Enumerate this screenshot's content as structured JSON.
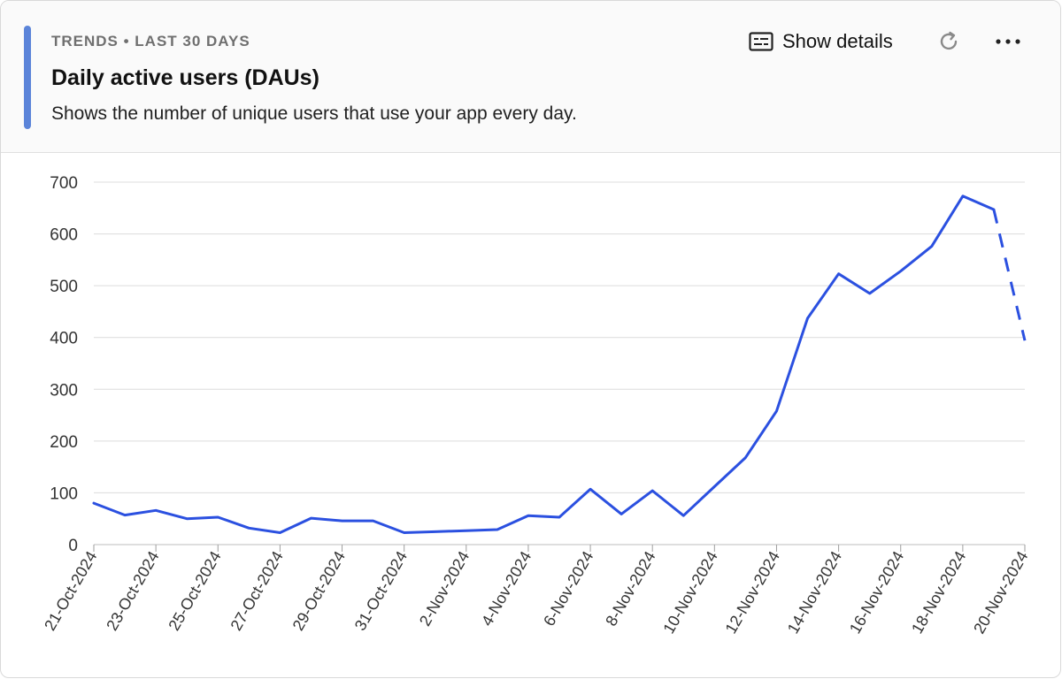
{
  "header": {
    "eyebrow": "TRENDS • LAST 30 DAYS",
    "title": "Daily active users (DAUs)",
    "subtitle": "Shows the number of unique users that use your app every day.",
    "show_details_label": "Show details",
    "accent_color": "#5b84d9"
  },
  "icons": {
    "details": "details-icon",
    "refresh": "refresh-icon",
    "more": "more-icon"
  },
  "chart_data": {
    "type": "line",
    "ylim": [
      0,
      700
    ],
    "yticks": [
      0,
      100,
      200,
      300,
      400,
      500,
      600,
      700
    ],
    "x": [
      "21-Oct-2024",
      "22-Oct-2024",
      "23-Oct-2024",
      "24-Oct-2024",
      "25-Oct-2024",
      "26-Oct-2024",
      "27-Oct-2024",
      "28-Oct-2024",
      "29-Oct-2024",
      "30-Oct-2024",
      "31-Oct-2024",
      "1-Nov-2024",
      "2-Nov-2024",
      "3-Nov-2024",
      "4-Nov-2024",
      "5-Nov-2024",
      "6-Nov-2024",
      "7-Nov-2024",
      "8-Nov-2024",
      "9-Nov-2024",
      "10-Nov-2024",
      "11-Nov-2024",
      "12-Nov-2024",
      "13-Nov-2024",
      "14-Nov-2024",
      "15-Nov-2024",
      "16-Nov-2024",
      "17-Nov-2024",
      "18-Nov-2024",
      "19-Nov-2024",
      "20-Nov-2024"
    ],
    "xticks": [
      "21-Oct-2024",
      "23-Oct-2024",
      "25-Oct-2024",
      "27-Oct-2024",
      "29-Oct-2024",
      "31-Oct-2024",
      "2-Nov-2024",
      "4-Nov-2024",
      "6-Nov-2024",
      "8-Nov-2024",
      "10-Nov-2024",
      "12-Nov-2024",
      "14-Nov-2024",
      "16-Nov-2024",
      "18-Nov-2024",
      "20-Nov-2024"
    ],
    "series": [
      {
        "values": [
          80,
          57,
          66,
          50,
          53,
          32,
          23,
          51,
          46,
          46,
          23,
          25,
          27,
          29,
          56,
          53,
          107,
          59,
          104,
          56,
          112,
          168,
          258,
          437,
          523,
          485,
          528,
          576,
          673,
          647,
          394
        ],
        "color": "#2b50e0",
        "incomplete_from_index": 29
      }
    ],
    "grid": true,
    "legend": "none"
  }
}
